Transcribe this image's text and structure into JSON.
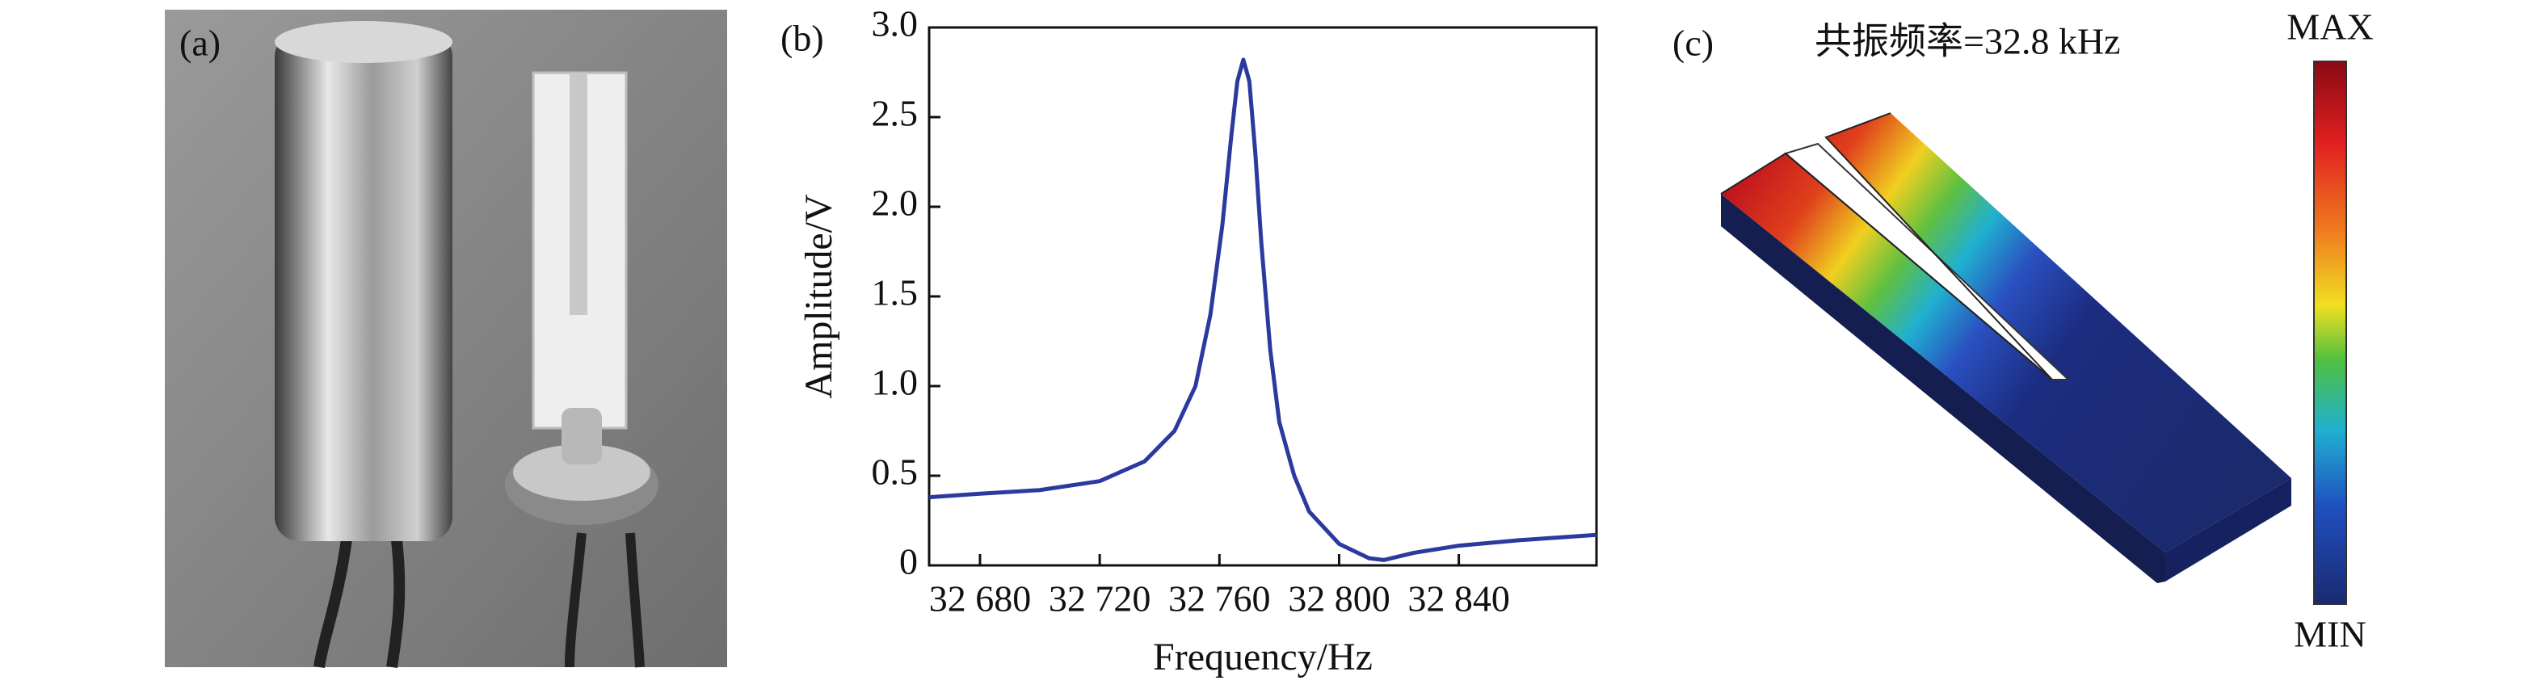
{
  "panel_labels": [
    "(a)",
    "(b)",
    "(c)"
  ],
  "chart_data": {
    "type": "line",
    "xlabel": "Frequency/Hz",
    "ylabel": "Amplitude/V",
    "x": [
      32663,
      32680,
      32700,
      32720,
      32735,
      32745,
      32752,
      32757,
      32761,
      32764,
      32766,
      32768,
      32770,
      32772,
      32774,
      32777,
      32780,
      32785,
      32790,
      32800,
      32810,
      32815,
      32825,
      32840,
      32860,
      32886
    ],
    "series": [
      {
        "color": "#2b3a9e",
        "values": [
          0.38,
          0.4,
          0.42,
          0.47,
          0.58,
          0.75,
          1.0,
          1.4,
          1.9,
          2.4,
          2.7,
          2.82,
          2.7,
          2.3,
          1.8,
          1.2,
          0.8,
          0.5,
          0.3,
          0.12,
          0.04,
          0.03,
          0.07,
          0.11,
          0.14,
          0.17
        ]
      }
    ],
    "xlim": [
      32663,
      32886
    ],
    "ylim": [
      0,
      3
    ],
    "xticks": [
      {
        "value": 32680,
        "label": "32 680"
      },
      {
        "value": 32720,
        "label": "32 720"
      },
      {
        "value": 32760,
        "label": "32 760"
      },
      {
        "value": 32800,
        "label": "32 800"
      },
      {
        "value": 32840,
        "label": "32 840"
      }
    ],
    "yticks": [
      0,
      0.5,
      {
        "value": 1,
        "label": "1.0"
      },
      1.5,
      {
        "value": 2,
        "label": "2.0"
      },
      2.5,
      {
        "value": 3,
        "label": "3.0"
      }
    ]
  },
  "simulation": {
    "title": "共振频率=32.8 kHz",
    "colorbar_max": "MAX",
    "colorbar_min": "MIN"
  }
}
